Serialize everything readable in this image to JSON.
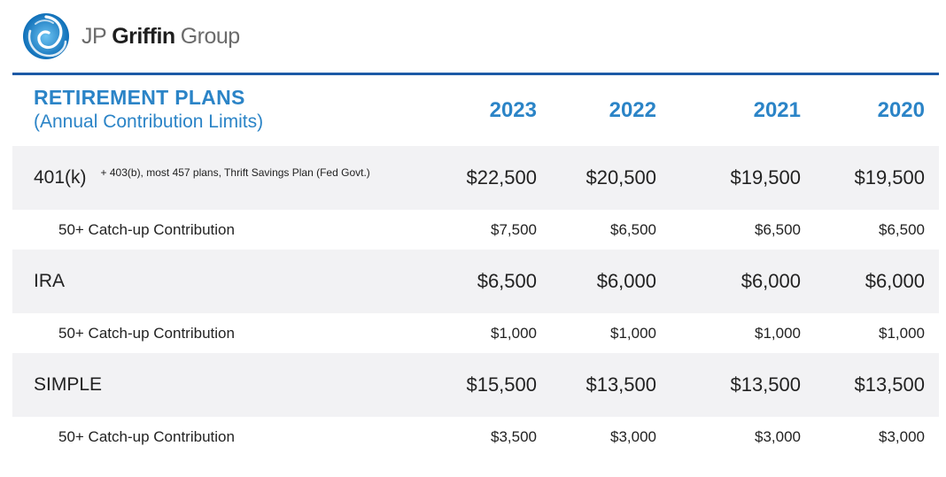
{
  "brand": {
    "name_part1": "JP",
    "name_part2": "Griffin",
    "name_part3": "Group",
    "logo_color": "#1e8ad6"
  },
  "header": {
    "title": "RETIREMENT PLANS",
    "subtitle": "(Annual Contribution Limits)",
    "years": [
      "2023",
      "2022",
      "2021",
      "2020"
    ]
  },
  "rows": [
    {
      "name": "401(k)",
      "note": "+ 403(b), most 457 plans, Thrift Savings Plan (Fed Govt.)",
      "values": [
        "$22,500",
        "$20,500",
        "$19,500",
        "$19,500"
      ],
      "catchup_label": "50+ Catch-up Contribution",
      "catchup_values": [
        "$7,500",
        "$6,500",
        "$6,500",
        "$6,500"
      ]
    },
    {
      "name": "IRA",
      "values": [
        "$6,500",
        "$6,000",
        "$6,000",
        "$6,000"
      ],
      "catchup_label": "50+ Catch-up Contribution",
      "catchup_values": [
        "$1,000",
        "$1,000",
        "$1,000",
        "$1,000"
      ]
    },
    {
      "name": "SIMPLE",
      "values": [
        "$15,500",
        "$13,500",
        "$13,500",
        "$13,500"
      ],
      "catchup_label": "50+ Catch-up Contribution",
      "catchup_values": [
        "$3,500",
        "$3,000",
        "$3,000",
        "$3,000"
      ]
    }
  ],
  "colors": {
    "accent": "#2b84c7",
    "rule": "#1c5aa6",
    "row_band": "#f2f2f4"
  }
}
